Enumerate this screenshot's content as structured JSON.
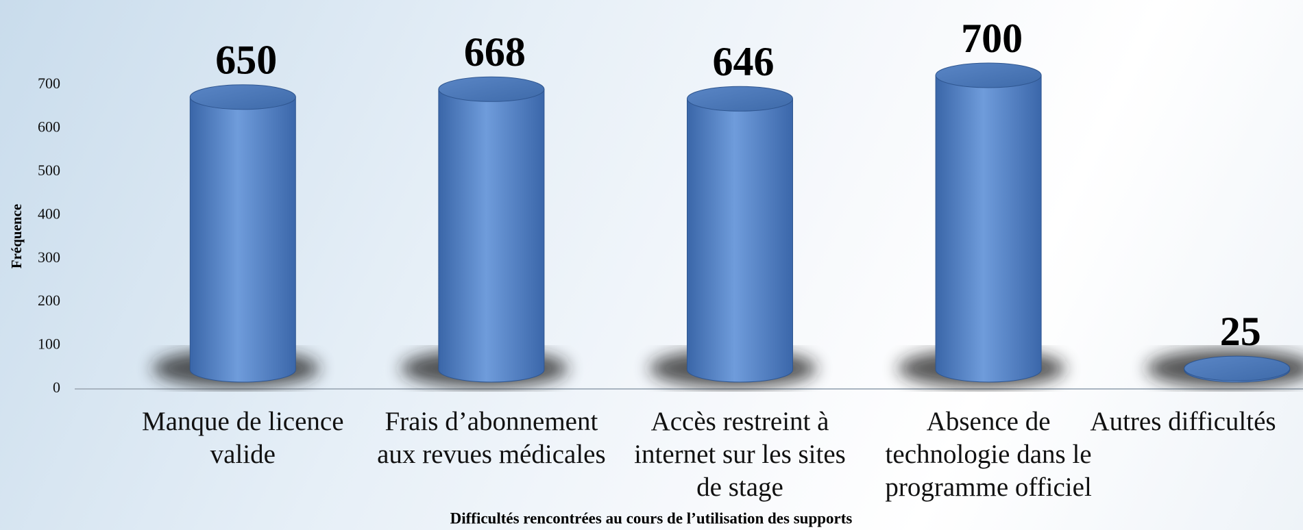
{
  "chart_data": {
    "type": "bar",
    "x_label": "Difficultés rencontrées au cours de l’utilisation des supports",
    "y_label": "Fréquence",
    "categories": [
      "Manque de licence valide",
      "Frais d’abonnement aux revues médicales",
      "Accès restreint à internet sur les sites de stage",
      "Absence de technologie dans le programme officiel",
      "Autres difficultés"
    ],
    "values": [
      650,
      668,
      646,
      700,
      25
    ],
    "color": "#4a7cc4",
    "ylim": [
      0,
      700
    ],
    "yticks": [
      0,
      100,
      200,
      300,
      400,
      500,
      600,
      700
    ],
    "grid": false
  }
}
